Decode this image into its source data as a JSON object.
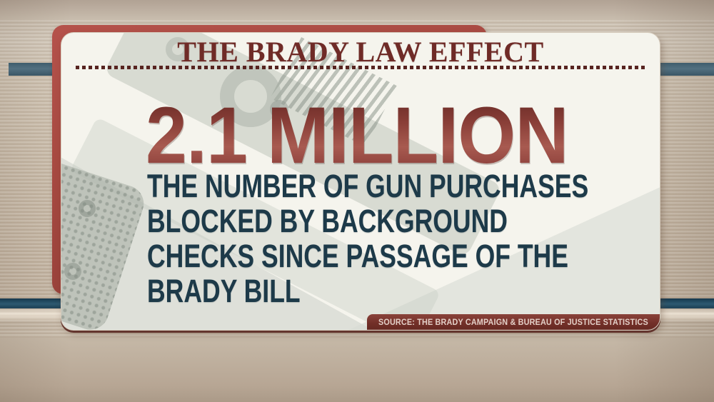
{
  "graphic": {
    "title": "THE BRADY LAW EFFECT",
    "statistic": {
      "value": "2.1 MILLION",
      "description_lines": [
        "THE NUMBER OF GUN PURCHASES",
        "BLOCKED BY BACKGROUND",
        "CHECKS SINCE PASSAGE OF THE",
        "BRADY BILL"
      ]
    },
    "source": "SOURCE: THE BRADY CAMPAIGN & BUREAU OF JUSTICE STATISTICS",
    "watermark": "faded grayscale 1911-style handgun photo"
  },
  "colors": {
    "maroon_card": "#8e3b35",
    "maroon_card_light": "#b5524b",
    "headline_text": "#6f2b27",
    "statistic_gradient_mid": "#a85a50",
    "description_text": "#1d3a49",
    "card_background": "#f5f4ed",
    "band_top_blue": "#527080",
    "band_bottom_navy": "#1f4459",
    "background_tan": "#c8baa8",
    "source_badge_background": "#733029",
    "source_badge_text": "#e3cfc7"
  }
}
